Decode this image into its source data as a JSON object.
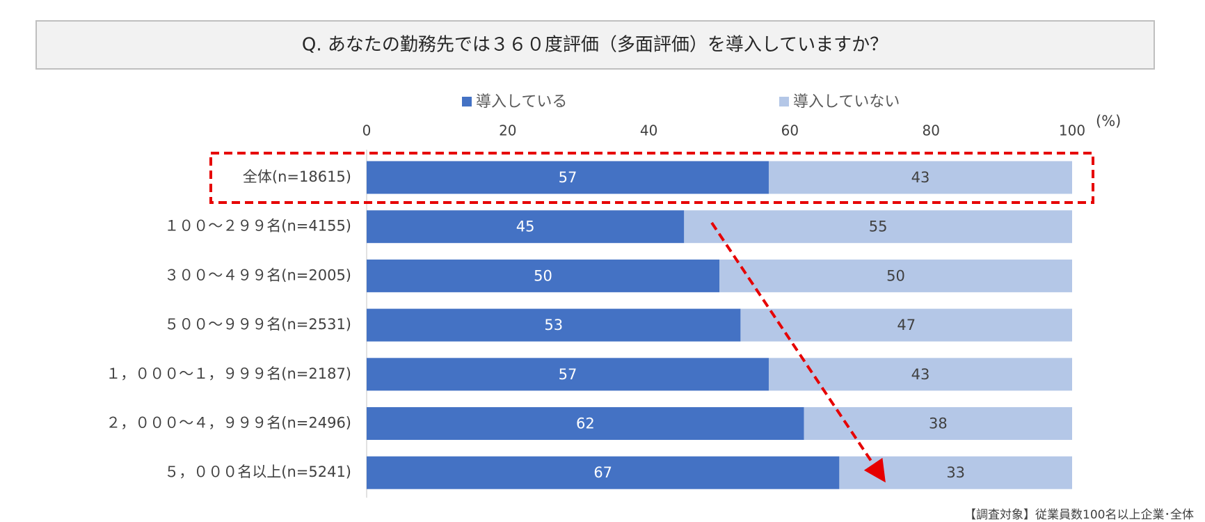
{
  "chart_data": {
    "type": "stacked-bar-horizontal",
    "title": "Q. あなたの勤務先では３６０度評価（多面評価）を導入していますか？",
    "unit_label": "(%)",
    "note": "【調査対象】従業員数100名以上企業･全体",
    "categories": [
      "全体(n=18615)",
      "１００～２９９名(n=4155)",
      "３００～４９９名(n=2005)",
      "５００～９９９名(n=2531)",
      "１，０００～１，９９９名(n=2187)",
      "２，０００～４，９９９名(n=2496)",
      "５，０００名以上(n=5241)"
    ],
    "series": [
      {
        "name": "導入している",
        "color": "#4472c4",
        "values": [
          57,
          45,
          50,
          53,
          57,
          62,
          67
        ]
      },
      {
        "name": "導入していない",
        "color": "#b4c7e7",
        "values": [
          43,
          55,
          50,
          47,
          43,
          38,
          33
        ]
      }
    ],
    "xlim": [
      0,
      100
    ],
    "xticks": [
      0,
      20,
      40,
      60,
      80,
      100
    ]
  }
}
